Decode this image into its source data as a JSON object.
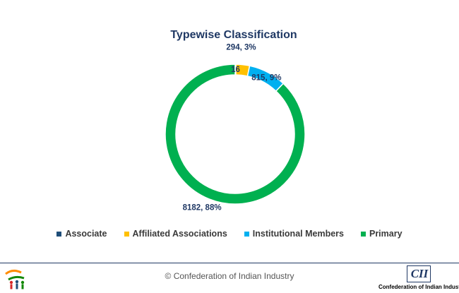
{
  "chart_data": {
    "type": "pie",
    "title": "Typewise Classification",
    "donut": true,
    "categories": [
      "Associate",
      "Affiliated Associations",
      "Institutional Members",
      "Primary"
    ],
    "values": [
      16,
      294,
      815,
      8182
    ],
    "data_labels": [
      "16",
      "294, 3%",
      "815, 9%",
      "8182, 88%"
    ],
    "colors": [
      "#1f4e79",
      "#ffc000",
      "#00b0f0",
      "#00b050"
    ],
    "legend_position": "bottom"
  },
  "footer": {
    "copyright": "© Confederation of Indian Industry"
  },
  "logo": {
    "cii_mark": "CII",
    "cii_caption": "Confederation of Indian Industry"
  }
}
